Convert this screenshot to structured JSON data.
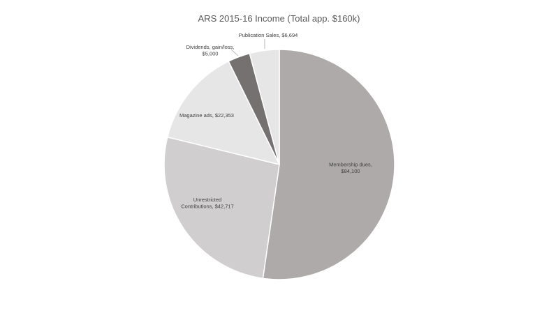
{
  "chart_data": {
    "type": "pie",
    "title": "ARS 2015-16 Income (Total app. $160k)",
    "start_angle_deg": 0,
    "direction": "clockwise",
    "slices": [
      {
        "label": "Membership dues",
        "value_label": "$84,100",
        "value": 84100,
        "color": "#aeaaaa"
      },
      {
        "label": "Unrestricted Contributions",
        "label_lines": [
          "Unrestricted",
          "Contributions, $42,717"
        ],
        "value": 42717,
        "color": "#d0cece"
      },
      {
        "label": "Magazine ads",
        "label_lines": [
          "Magazine ads, $22,353"
        ],
        "value": 22353,
        "color": "#e7e6e6"
      },
      {
        "label": "Dividends, gain/loss",
        "label_lines": [
          "Dividends, gain/loss,",
          "$5,000"
        ],
        "value": 5000,
        "color": "#767171"
      },
      {
        "label": "Publication Sales",
        "label_lines": [
          "Publication Sales, $6,694"
        ],
        "value": 6694,
        "color": "#e7e6e6"
      }
    ],
    "inside_label_lines": [
      "Membership dues,",
      "$84,100"
    ]
  }
}
